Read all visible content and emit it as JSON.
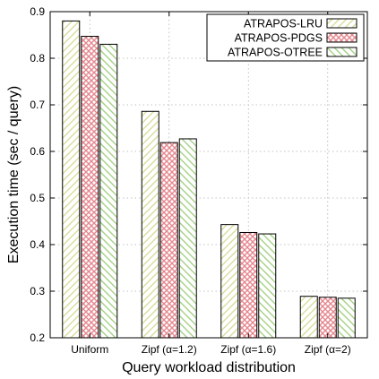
{
  "chart_data": {
    "type": "bar",
    "title": "",
    "xlabel": "Query workload distribution",
    "ylabel": "Execution time (sec / query)",
    "ylim": [
      0.2,
      0.9
    ],
    "yticks": [
      "0.2",
      "0.3",
      "0.4",
      "0.5",
      "0.6",
      "0.7",
      "0.8",
      "0.9"
    ],
    "categories": [
      "Uniform",
      "Zipf (α=1.2)",
      "Zipf (α=1.6)",
      "Zipf (α=2)"
    ],
    "grid": true,
    "legend_position": "top-right",
    "series": [
      {
        "name": "ATRAPOS-LRU",
        "values": [
          0.88,
          0.686,
          0.443,
          0.289
        ],
        "color": "#d8de9c",
        "pattern": "diagonal-up"
      },
      {
        "name": "ATRAPOS-PDGS",
        "values": [
          0.847,
          0.619,
          0.426,
          0.287
        ],
        "color": "#e5878e",
        "pattern": "crosshatch"
      },
      {
        "name": "ATRAPOS-OTREE",
        "values": [
          0.83,
          0.627,
          0.423,
          0.285
        ],
        "color": "#a3d185",
        "pattern": "diagonal-down"
      }
    ]
  }
}
